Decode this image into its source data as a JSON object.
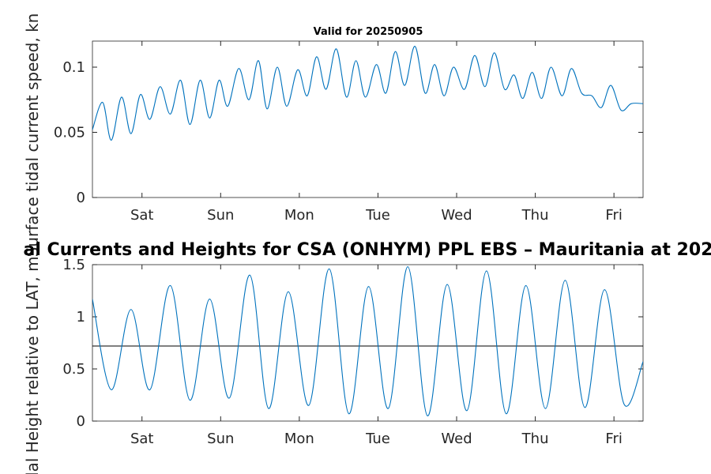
{
  "figure": {
    "main_title": "al Currents and Heights for CSA (ONHYM) PPL EBS  – Mauritania at 202",
    "subtitle": "Valid for 20250905"
  },
  "colors": {
    "series": "#0072bd",
    "axis": "#262626",
    "reference_line": "#000000",
    "background": "#ffffff"
  },
  "chart_data": [
    {
      "type": "line",
      "title": "Valid for 20250905",
      "ylabel": "Surface tidal current speed, kn",
      "xlabel": "",
      "xlim": [
        -0.38,
        6.62
      ],
      "ylim": [
        0,
        0.12
      ],
      "grid": false,
      "x_ticks": [
        {
          "value": 0.25,
          "label": "Sat"
        },
        {
          "value": 1.25,
          "label": "Sun"
        },
        {
          "value": 2.25,
          "label": "Mon"
        },
        {
          "value": 3.25,
          "label": "Tue"
        },
        {
          "value": 4.25,
          "label": "Wed"
        },
        {
          "value": 5.25,
          "label": "Thu"
        },
        {
          "value": 6.25,
          "label": "Fri"
        }
      ],
      "y_ticks": [
        {
          "value": 0,
          "label": "0"
        },
        {
          "value": 0.05,
          "label": "0.05"
        },
        {
          "value": 0.1,
          "label": "0.1"
        }
      ],
      "series": [
        {
          "x": [
            -0.38,
            -0.25,
            -0.14,
            -0.01,
            0.11,
            0.23,
            0.35,
            0.48,
            0.61,
            0.74,
            0.86,
            0.99,
            1.11,
            1.23,
            1.34,
            1.48,
            1.61,
            1.73,
            1.84,
            1.97,
            2.09,
            2.23,
            2.35,
            2.47,
            2.59,
            2.72,
            2.85,
            2.97,
            3.09,
            3.23,
            3.35,
            3.47,
            3.59,
            3.72,
            3.85,
            3.97,
            4.09,
            4.21,
            4.35,
            4.48,
            4.61,
            4.73,
            4.86,
            4.98,
            5.09,
            5.21,
            5.33,
            5.45,
            5.59,
            5.71,
            5.84,
            5.97,
            6.09,
            6.21,
            6.34,
            6.47,
            6.62
          ],
          "y": [
            0.052,
            0.073,
            0.044,
            0.077,
            0.049,
            0.079,
            0.06,
            0.085,
            0.064,
            0.09,
            0.056,
            0.09,
            0.061,
            0.09,
            0.07,
            0.099,
            0.075,
            0.105,
            0.068,
            0.1,
            0.07,
            0.098,
            0.078,
            0.108,
            0.083,
            0.114,
            0.077,
            0.105,
            0.077,
            0.102,
            0.08,
            0.112,
            0.086,
            0.116,
            0.08,
            0.102,
            0.078,
            0.1,
            0.083,
            0.109,
            0.085,
            0.111,
            0.083,
            0.094,
            0.076,
            0.096,
            0.076,
            0.1,
            0.078,
            0.099,
            0.08,
            0.078,
            0.069,
            0.086,
            0.067,
            0.072,
            0.072
          ]
        }
      ]
    },
    {
      "type": "line",
      "title": "al Currents and Heights for CSA (ONHYM) PPL EBS  – Mauritania at 202",
      "ylabel": "idal Height relative to LAT, m",
      "xlabel": "",
      "xlim": [
        -0.38,
        6.62
      ],
      "ylim": [
        0,
        1.5
      ],
      "grid": false,
      "reference_line": 0.72,
      "x_ticks": [
        {
          "value": 0.25,
          "label": "Sat"
        },
        {
          "value": 1.25,
          "label": "Sun"
        },
        {
          "value": 2.25,
          "label": "Mon"
        },
        {
          "value": 3.25,
          "label": "Tue"
        },
        {
          "value": 4.25,
          "label": "Wed"
        },
        {
          "value": 5.25,
          "label": "Thu"
        },
        {
          "value": 6.25,
          "label": "Fri"
        }
      ],
      "y_ticks": [
        {
          "value": 0,
          "label": "0"
        },
        {
          "value": 0.5,
          "label": "0.5"
        },
        {
          "value": 1,
          "label": "1"
        },
        {
          "value": 1.5,
          "label": "1.5"
        }
      ],
      "series": [
        {
          "x": [
            -0.38,
            -0.14,
            0.11,
            0.35,
            0.61,
            0.86,
            1.11,
            1.36,
            1.62,
            1.86,
            2.11,
            2.37,
            2.63,
            2.88,
            3.13,
            3.38,
            3.63,
            3.88,
            4.13,
            4.38,
            4.63,
            4.88,
            5.13,
            5.38,
            5.63,
            5.88,
            6.13,
            6.38,
            6.62
          ],
          "y": [
            1.17,
            0.3,
            1.07,
            0.3,
            1.3,
            0.2,
            1.17,
            0.22,
            1.4,
            0.12,
            1.24,
            0.15,
            1.46,
            0.07,
            1.29,
            0.12,
            1.48,
            0.05,
            1.31,
            0.1,
            1.44,
            0.07,
            1.3,
            0.12,
            1.35,
            0.13,
            1.26,
            0.16,
            0.57
          ]
        }
      ]
    }
  ]
}
